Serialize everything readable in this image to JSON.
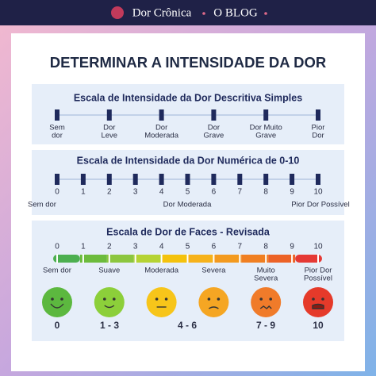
{
  "header": {
    "brand": "Dor Crônica",
    "blog": "O BLOG"
  },
  "title": "DETERMINAR A INTENSIDADE DA DOR",
  "scale1": {
    "title": "Escala de Intensidade da Dor Descritiva Simples",
    "labels": [
      [
        "Sem",
        "dor"
      ],
      [
        "Dor",
        "Leve"
      ],
      [
        "Dor",
        "Moderada"
      ],
      [
        "Dor",
        "Grave"
      ],
      [
        "Dor Muito",
        "Grave"
      ],
      [
        "Pior",
        "Dor"
      ]
    ]
  },
  "scale2": {
    "title": "Escala de Intensidade da Dor Numérica de 0-10",
    "numbers": [
      "0",
      "1",
      "2",
      "3",
      "4",
      "5",
      "6",
      "7",
      "8",
      "9",
      "10"
    ],
    "labels": [
      "Sem dor",
      "Dor Moderada",
      "Pior Dor Possível"
    ]
  },
  "scale3": {
    "title": "Escala de Dor de Faces - Revisada",
    "numbers": [
      "0",
      "1",
      "2",
      "3",
      "4",
      "5",
      "6",
      "7",
      "8",
      "9",
      "10"
    ],
    "labels": [
      [
        "Sem dor"
      ],
      [
        "Suave"
      ],
      [
        "Moderada"
      ],
      [
        "Severa"
      ],
      [
        "Muito",
        "Severa"
      ],
      [
        "Pior Dor",
        "Possível"
      ]
    ],
    "scores": [
      "0",
      "1 - 3",
      "4 - 6",
      "7 - 9",
      "10"
    ]
  }
}
